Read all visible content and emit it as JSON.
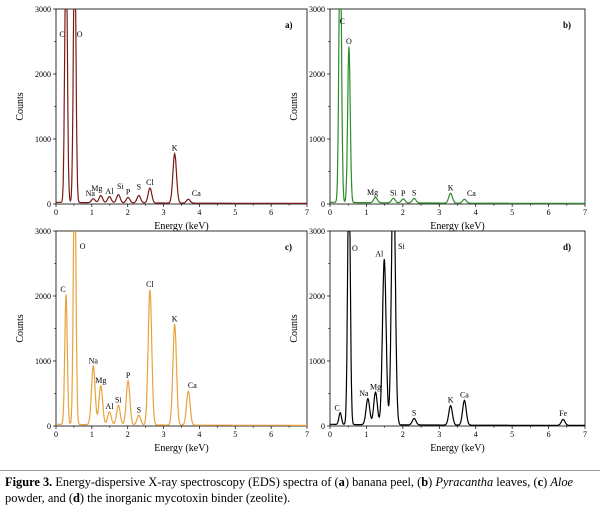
{
  "chart_data": [
    {
      "type": "line",
      "panel": "a)",
      "color": "#7a1b17",
      "xlabel": "Energy (keV)",
      "ylabel": "Counts",
      "xlim": [
        0,
        7
      ],
      "ylim": [
        0,
        3000
      ],
      "x_ticks": [
        "0",
        "1",
        "2",
        "3",
        "4",
        "5",
        "6",
        "7"
      ],
      "y_ticks": [
        "0",
        "1000",
        "2000",
        "3000"
      ],
      "peaks": [
        {
          "element": "C",
          "energy": 0.28,
          "counts": 3000
        },
        {
          "element": "O",
          "energy": 0.52,
          "counts": 3000
        },
        {
          "element": "Na",
          "energy": 1.04,
          "counts": 60
        },
        {
          "element": "Mg",
          "energy": 1.25,
          "counts": 110
        },
        {
          "element": "Al",
          "energy": 1.49,
          "counts": 95
        },
        {
          "element": "Si",
          "energy": 1.74,
          "counts": 125
        },
        {
          "element": "P",
          "energy": 2.01,
          "counts": 85
        },
        {
          "element": "S",
          "energy": 2.31,
          "counts": 115
        },
        {
          "element": "Cl",
          "energy": 2.62,
          "counts": 230
        },
        {
          "element": "K",
          "energy": 3.31,
          "counts": 760
        },
        {
          "element": "Ca",
          "energy": 3.69,
          "counts": 60
        }
      ]
    },
    {
      "type": "line",
      "panel": "b)",
      "color": "#2e8b2e",
      "xlabel": "Energy (keV)",
      "ylabel": "Counts",
      "xlim": [
        0,
        7
      ],
      "ylim": [
        0,
        3000
      ],
      "x_ticks": [
        "0",
        "1",
        "2",
        "3",
        "4",
        "5",
        "6",
        "7"
      ],
      "y_ticks": [
        "0",
        "1000",
        "2000",
        "3000"
      ],
      "peaks": [
        {
          "element": "C",
          "energy": 0.28,
          "counts": 3000
        },
        {
          "element": "O",
          "energy": 0.52,
          "counts": 2400
        },
        {
          "element": "Mg",
          "energy": 1.25,
          "counts": 80
        },
        {
          "element": "Si",
          "energy": 1.74,
          "counts": 70
        },
        {
          "element": "P",
          "energy": 2.01,
          "counts": 60
        },
        {
          "element": "S",
          "energy": 2.31,
          "counts": 70
        },
        {
          "element": "K",
          "energy": 3.31,
          "counts": 150
        },
        {
          "element": "Ca",
          "energy": 3.69,
          "counts": 60
        }
      ]
    },
    {
      "type": "line",
      "panel": "c)",
      "color": "#e8a33c",
      "xlabel": "Energy (keV)",
      "ylabel": "Counts",
      "xlim": [
        0,
        7
      ],
      "ylim": [
        0,
        3000
      ],
      "x_ticks": [
        "0",
        "1",
        "2",
        "3",
        "4",
        "5",
        "6",
        "7"
      ],
      "y_ticks": [
        "0",
        "1000",
        "2000",
        "3000"
      ],
      "peaks": [
        {
          "element": "C",
          "energy": 0.28,
          "counts": 2000
        },
        {
          "element": "O",
          "energy": 0.52,
          "counts": 3000
        },
        {
          "element": "Na",
          "energy": 1.04,
          "counts": 900
        },
        {
          "element": "Mg",
          "energy": 1.25,
          "counts": 600
        },
        {
          "element": "Al",
          "energy": 1.49,
          "counts": 200
        },
        {
          "element": "Si",
          "energy": 1.74,
          "counts": 300
        },
        {
          "element": "P",
          "energy": 2.01,
          "counts": 680
        },
        {
          "element": "S",
          "energy": 2.31,
          "counts": 150
        },
        {
          "element": "Cl",
          "energy": 2.62,
          "counts": 2080
        },
        {
          "element": "K",
          "energy": 3.31,
          "counts": 1550
        },
        {
          "element": "Ca",
          "energy": 3.69,
          "counts": 520
        }
      ]
    },
    {
      "type": "line",
      "panel": "d)",
      "color": "#000000",
      "xlabel": "Energy (keV)",
      "ylabel": "Counts",
      "xlim": [
        0,
        7
      ],
      "ylim": [
        0,
        3000
      ],
      "x_ticks": [
        "0",
        "1",
        "2",
        "3",
        "4",
        "5",
        "6",
        "7"
      ],
      "y_ticks": [
        "0",
        "1000",
        "2000",
        "3000"
      ],
      "peaks": [
        {
          "element": "C",
          "energy": 0.28,
          "counts": 180
        },
        {
          "element": "O",
          "energy": 0.52,
          "counts": 3000
        },
        {
          "element": "Na",
          "energy": 1.04,
          "counts": 400
        },
        {
          "element": "Mg",
          "energy": 1.25,
          "counts": 500
        },
        {
          "element": "Al",
          "energy": 1.49,
          "counts": 2550
        },
        {
          "element": "Si",
          "energy": 1.74,
          "counts": 3000
        },
        {
          "element": "S",
          "energy": 2.31,
          "counts": 100
        },
        {
          "element": "K",
          "energy": 3.31,
          "counts": 300
        },
        {
          "element": "Ca",
          "energy": 3.69,
          "counts": 380
        },
        {
          "element": "Fe",
          "energy": 6.4,
          "counts": 90
        }
      ]
    }
  ],
  "caption": {
    "label": "Figure 3.",
    "text_1": " Energy-dispersive X-ray spectroscopy (EDS) spectra of (",
    "bold_a": "a",
    "text_2": ") banana peel, (",
    "bold_b": "b",
    "text_3": ") ",
    "italic_pyracantha": "Pyracantha",
    "text_4": " leaves, (",
    "bold_c": "c",
    "text_5": ") ",
    "italic_aloe": "Aloe",
    "text_6": " powder, and (",
    "bold_d": "d",
    "text_7": ") the inorganic mycotoxin binder (zeolite)."
  }
}
